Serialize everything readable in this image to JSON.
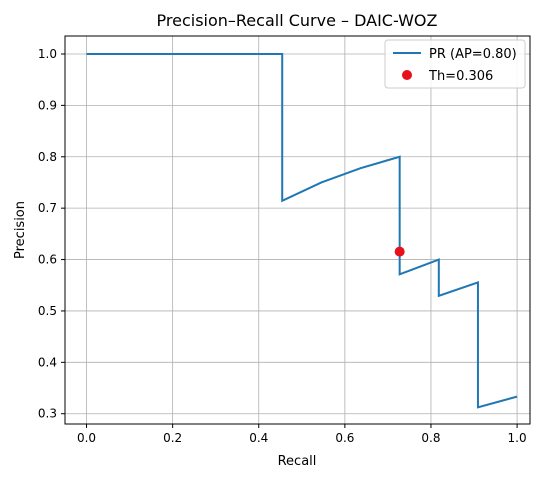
{
  "chart_data": {
    "type": "line",
    "title": "Precision–Recall Curve – DAIC-WOZ",
    "xlabel": "Recall",
    "ylabel": "Precision",
    "xlim": [
      -0.05,
      1.03
    ],
    "ylim": [
      0.28,
      1.035
    ],
    "grid": true,
    "legend_position": "top-right",
    "x_ticks": [
      0.0,
      0.2,
      0.4,
      0.6,
      0.8,
      1.0
    ],
    "y_ticks": [
      0.3,
      0.4,
      0.5,
      0.6,
      0.7,
      0.8,
      0.9,
      1.0
    ],
    "x_tick_labels": [
      "0.0",
      "0.2",
      "0.4",
      "0.6",
      "0.8",
      "1.0"
    ],
    "y_tick_labels": [
      "0.3",
      "0.4",
      "0.5",
      "0.6",
      "0.7",
      "0.8",
      "0.9",
      "1.0"
    ],
    "series": [
      {
        "name": "PR (AP=0.80)",
        "color": "#1f77b4",
        "x": [
          0.0,
          0.4545,
          0.4545,
          0.5455,
          0.6364,
          0.7273,
          0.7273,
          0.8182,
          0.8182,
          0.9091,
          0.9091,
          1.0
        ],
        "y": [
          1.0,
          1.0,
          0.7143,
          0.75,
          0.7778,
          0.8,
          0.5714,
          0.6,
          0.5294,
          0.5556,
          0.3125,
          0.3333
        ]
      }
    ],
    "points": [
      {
        "name": "Th=0.306",
        "color": "#e8101a",
        "x": 0.7273,
        "y": 0.6154
      }
    ]
  }
}
